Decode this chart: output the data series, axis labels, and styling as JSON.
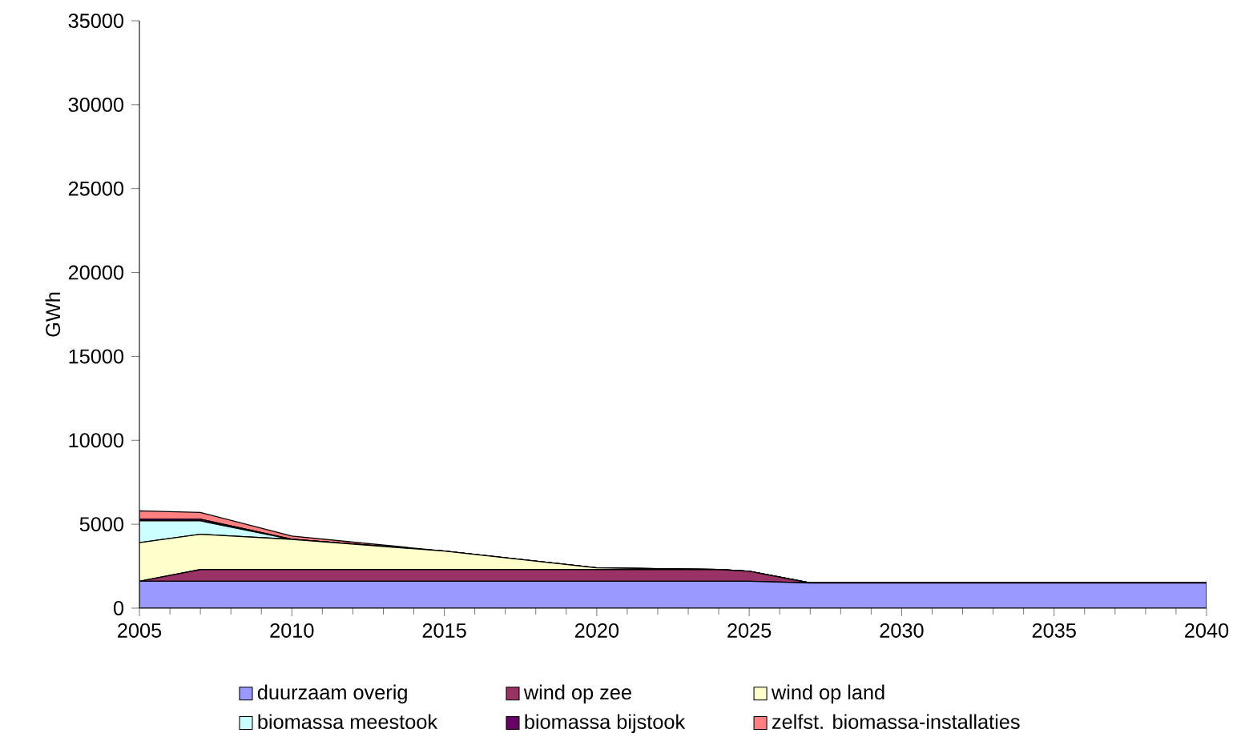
{
  "chart_data": {
    "type": "area",
    "stacked": true,
    "ylabel": "GWh",
    "x": [
      2005,
      2007,
      2010,
      2015,
      2020,
      2024,
      2025,
      2027,
      2040
    ],
    "xlim": [
      2005,
      2040
    ],
    "xticks": [
      2005,
      2010,
      2015,
      2020,
      2025,
      2030,
      2035,
      2040
    ],
    "ylim": [
      0,
      35000
    ],
    "yticks": [
      0,
      5000,
      10000,
      15000,
      20000,
      25000,
      30000,
      35000
    ],
    "grid": false,
    "legend": "bottom",
    "series": [
      {
        "name": "duurzaam overig",
        "color": "#9999ff",
        "values": [
          1600,
          1600,
          1600,
          1600,
          1600,
          1600,
          1600,
          1500,
          1500
        ]
      },
      {
        "name": "wind op zee",
        "color": "#993366",
        "values": [
          0,
          700,
          700,
          700,
          700,
          700,
          600,
          0,
          0
        ]
      },
      {
        "name": "wind op land",
        "color": "#ffffcc",
        "values": [
          2300,
          2100,
          1800,
          1100,
          100,
          0,
          0,
          0,
          0
        ]
      },
      {
        "name": "biomassa meestook",
        "color": "#ccffff",
        "values": [
          1300,
          800,
          0,
          0,
          0,
          0,
          0,
          0,
          0
        ]
      },
      {
        "name": "biomassa bijstook",
        "color": "#660066",
        "values": [
          100,
          100,
          0,
          0,
          0,
          0,
          0,
          0,
          0
        ]
      },
      {
        "name": "zelfst. biomassa-installaties",
        "color": "#ff8080",
        "values": [
          500,
          400,
          200,
          0,
          0,
          0,
          0,
          0,
          0
        ]
      }
    ]
  }
}
